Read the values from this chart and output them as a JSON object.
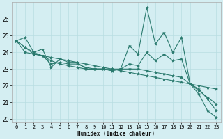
{
  "xlabel": "Humidex (Indice chaleur)",
  "bg_color": "#d4eef2",
  "grid_color": "#b8dde2",
  "line_color": "#2a7a6e",
  "xlim": [
    -0.5,
    23.5
  ],
  "ylim": [
    19.8,
    27.0
  ],
  "yticks": [
    20,
    21,
    22,
    23,
    24,
    25,
    26
  ],
  "xticks": [
    0,
    1,
    2,
    3,
    4,
    5,
    6,
    7,
    8,
    9,
    10,
    11,
    12,
    13,
    14,
    15,
    16,
    17,
    18,
    19,
    20,
    21,
    22,
    23
  ],
  "series": [
    [
      24.7,
      24.9,
      24.0,
      24.2,
      23.1,
      23.6,
      23.4,
      23.4,
      23.0,
      23.0,
      23.0,
      22.9,
      23.0,
      24.4,
      23.9,
      26.7,
      24.5,
      25.2,
      24.0,
      24.9,
      22.1,
      21.5,
      20.5,
      20.1
    ],
    [
      24.7,
      24.0,
      23.9,
      23.8,
      23.7,
      23.6,
      23.5,
      23.4,
      23.3,
      23.2,
      23.1,
      23.0,
      22.9,
      22.8,
      22.7,
      22.6,
      22.5,
      22.4,
      22.3,
      22.2,
      22.1,
      22.0,
      21.9,
      21.8
    ],
    [
      24.7,
      24.3,
      24.0,
      23.8,
      23.5,
      23.3,
      23.2,
      23.1,
      23.0,
      23.0,
      23.0,
      23.0,
      23.0,
      23.0,
      23.0,
      22.9,
      22.8,
      22.7,
      22.6,
      22.5,
      22.1,
      21.7,
      21.3,
      20.9
    ],
    [
      24.7,
      24.3,
      23.9,
      23.8,
      23.3,
      23.4,
      23.3,
      23.3,
      23.1,
      23.0,
      23.0,
      22.9,
      23.0,
      23.3,
      23.2,
      24.0,
      23.5,
      23.9,
      23.5,
      23.6,
      22.1,
      21.8,
      21.2,
      20.5
    ]
  ],
  "marker": "*",
  "markersize": 3.0,
  "linewidth": 0.8,
  "tick_fontsize": 5.0,
  "xlabel_fontsize": 5.5
}
